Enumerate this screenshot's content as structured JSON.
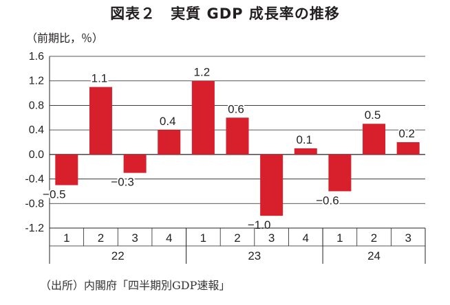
{
  "title": "図表２　実質 GDP 成長率の推移",
  "unit_label": "（前期比，％）",
  "source": "（出所）内閣府「四半期別GDP速報」",
  "bar_color": "#d7202b",
  "chart_data": {
    "type": "bar",
    "title": "図表２　実質 GDP 成長率の推移",
    "ylabel": "（前期比，％）",
    "xlabel": "",
    "ylim": [
      -1.2,
      1.6
    ],
    "yticks": [
      "1.6",
      "1.2",
      "0.8",
      "0.4",
      "0.0",
      "-0.4",
      "-0.8",
      "-1.2"
    ],
    "grid": true,
    "quarters": [
      "1",
      "2",
      "3",
      "4",
      "1",
      "2",
      "3",
      "4",
      "1",
      "2",
      "3"
    ],
    "years": [
      {
        "label": "22",
        "count": 4
      },
      {
        "label": "23",
        "count": 4
      },
      {
        "label": "24",
        "count": 3
      }
    ],
    "values": [
      -0.5,
      1.1,
      -0.3,
      0.4,
      1.2,
      0.6,
      -1.0,
      0.1,
      -0.6,
      0.5,
      0.2
    ],
    "value_labels": [
      "−0.5",
      "1.1",
      "−0.3",
      "0.4",
      "1.2",
      "0.6",
      "−1.0",
      "0.1",
      "−0.6",
      "0.5",
      "0.2"
    ]
  }
}
